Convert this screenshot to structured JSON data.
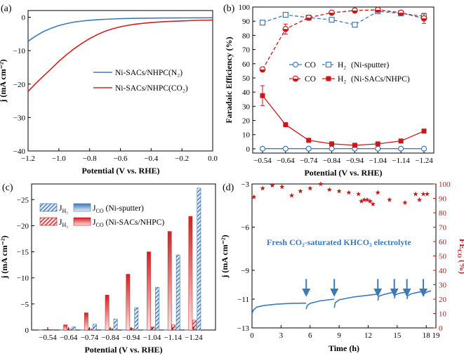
{
  "chart_data": [
    {
      "panel": "(a)",
      "type": "line",
      "xlabel": "Potential (V vs. RHE)",
      "ylabel": "j (mA cm⁻²)",
      "xlim": [
        -1.2,
        0.0
      ],
      "ylim": [
        -40,
        2
      ],
      "xticks": [
        -1.2,
        -1.0,
        -0.8,
        -0.6,
        -0.4,
        -0.2,
        0.0
      ],
      "yticks": [
        0,
        -10,
        -20,
        -30,
        -40
      ],
      "series": [
        {
          "name": "Ni-SACs/NHPC(N₂)",
          "color": "#3d7ab8",
          "x": [
            -1.2,
            -1.15,
            -1.1,
            -1.05,
            -1.0,
            -0.95,
            -0.9,
            -0.85,
            -0.8,
            -0.75,
            -0.7,
            -0.65,
            -0.6,
            -0.55,
            -0.5,
            -0.4,
            -0.3,
            -0.2,
            -0.1,
            0.0
          ],
          "y": [
            -7.2,
            -5.6,
            -4.3,
            -3.3,
            -2.5,
            -1.9,
            -1.45,
            -1.15,
            -0.92,
            -0.75,
            -0.62,
            -0.52,
            -0.44,
            -0.38,
            -0.33,
            -0.27,
            -0.23,
            -0.2,
            -0.18,
            -0.17
          ]
        },
        {
          "name": "Ni-SACs/NHPC(CO₂)",
          "color": "#d42020",
          "x": [
            -1.2,
            -1.15,
            -1.1,
            -1.05,
            -1.0,
            -0.95,
            -0.9,
            -0.85,
            -0.8,
            -0.75,
            -0.7,
            -0.65,
            -0.6,
            -0.55,
            -0.5,
            -0.4,
            -0.3,
            -0.2,
            -0.1,
            0.0
          ],
          "y": [
            -22.2,
            -19.8,
            -17.6,
            -15.4,
            -13.2,
            -11.2,
            -9.4,
            -7.8,
            -6.4,
            -5.2,
            -4.2,
            -3.45,
            -2.85,
            -2.4,
            -2.05,
            -1.6,
            -1.3,
            -1.1,
            -0.95,
            -0.85
          ]
        }
      ]
    },
    {
      "panel": "(b)",
      "type": "line",
      "xlabel": "Potential (V vs. RHE)",
      "ylabel": "Faradaic Efficiency (%)",
      "categories": [
        "-0.54",
        "-0.64",
        "-0.74",
        "-0.84",
        "-0.94",
        "-1.04",
        "-1.14",
        "-1.24"
      ],
      "ylim": [
        -3,
        100
      ],
      "yticks": [
        0,
        10,
        20,
        30,
        40,
        50,
        60,
        70,
        80,
        90,
        100
      ],
      "series": [
        {
          "name": "CO",
          "group": "Ni-sputter",
          "color": "#3d7ab8",
          "style": "solid-open-circle",
          "values": [
            0.1,
            0.1,
            0.1,
            0.1,
            0.1,
            0.1,
            0.1,
            0.1
          ]
        },
        {
          "name": "H₂",
          "group": "Ni-sputter",
          "color": "#3d7ab8",
          "style": "dashed-open-square",
          "values": [
            89.0,
            94.5,
            92.5,
            91.0,
            87.5,
            97.0,
            95.5,
            93.5
          ],
          "errors": [
            1.2,
            0.8,
            0.8,
            0.8,
            0.8,
            0.8,
            0.8,
            0.8
          ]
        },
        {
          "name": "CO",
          "group": "Ni-SACs/NHPC",
          "color": "#c81818",
          "style": "dashed-half-circle",
          "values": [
            56.0,
            84.5,
            92.5,
            96.0,
            97.5,
            98.0,
            96.0,
            92.0
          ],
          "errors": [
            0.8,
            3.5,
            1.0,
            1.0,
            0.6,
            0.6,
            1.0,
            3.5
          ]
        },
        {
          "name": "H₂",
          "group": "Ni-SACs/NHPC",
          "color": "#c81818",
          "style": "solid-filled-square",
          "values": [
            37.5,
            17.0,
            6.0,
            3.5,
            2.5,
            3.5,
            5.5,
            12.5
          ],
          "errors": [
            7.0,
            0.8,
            0.4,
            0.3,
            0.3,
            0.4,
            0.5,
            0.6
          ]
        }
      ],
      "legend": {
        "row1": {
          "co": "CO",
          "h2": "H₂",
          "group": "(Ni-sputter)"
        },
        "row2": {
          "co": "CO",
          "h2": "H₂",
          "group": "(Ni-SACs/NHPC)"
        }
      }
    },
    {
      "panel": "(c)",
      "type": "bar",
      "xlabel": "Potential (V vs. RHE)",
      "ylabel": "j (mA cm⁻²)",
      "categories": [
        "-0.54",
        "-0.64",
        "-0.74",
        "-0.84",
        "-0.94",
        "-1.04",
        "-1.14",
        "-1.24"
      ],
      "ylim": [
        0,
        -28
      ],
      "yticks": [
        0,
        -5,
        -10,
        -15,
        -20,
        -25
      ],
      "series": [
        {
          "name": "J_H2 (Ni-sputter)",
          "color": "#3d7ab8",
          "pattern": "hatched",
          "values": [
            -0.1,
            -0.6,
            -1.1,
            -2.1,
            -4.3,
            -8.2,
            -14.4,
            -27.2
          ]
        },
        {
          "name": "J_CO (Ni-sputter)",
          "color": "#3d7ab8",
          "pattern": "gradient",
          "values": [
            -0.05,
            -0.05,
            -0.05,
            -0.05,
            -0.05,
            -0.05,
            -0.05,
            -0.05
          ]
        },
        {
          "name": "J_H2 (Ni-SACs/NHPC)",
          "color": "#c81818",
          "pattern": "hatched",
          "values": [
            -0.1,
            -0.2,
            -0.25,
            -0.25,
            -0.3,
            -0.6,
            -1.0,
            -1.9
          ]
        },
        {
          "name": "J_CO (Ni-SACs/NHPC)",
          "color": "#c81818",
          "pattern": "gradient",
          "values": [
            -0.1,
            -1.0,
            -3.3,
            -6.7,
            -10.7,
            -15.0,
            -18.9,
            -21.8
          ]
        }
      ],
      "legend": {
        "r1_hatch": "J",
        "r1_hatch_sub": "H₂",
        "r1_grad": "J",
        "r1_grad_sub": "CO",
        "r1_group": " (Ni-sputter)",
        "r2_hatch": "J",
        "r2_hatch_sub": "H₂",
        "r2_grad": "J",
        "r2_grad_sub": "CO",
        "r2_group": " (Ni-SACs/NHPC)"
      }
    },
    {
      "panel": "(d)",
      "type": "scatter",
      "xlabel": "Time (h)",
      "ylabel_left": "j (mA cm⁻²)",
      "ylabel_right": "FE",
      "ylabel_right_sub": "CO",
      "ylabel_right_unit": " (%)",
      "xlim": [
        0,
        19
      ],
      "ylim_left": [
        -13,
        -3
      ],
      "ylim_right": [
        0,
        100
      ],
      "xticks": [
        0,
        3,
        6,
        9,
        12,
        15,
        18,
        19
      ],
      "yticks_left": [
        -3,
        -6,
        -9,
        -11,
        -13
      ],
      "yticks_right": [
        0,
        10,
        20,
        30,
        40,
        50,
        60,
        70,
        80,
        90,
        100
      ],
      "annotation": "Fresh CO₂-saturated KHCO₃ electrolyte",
      "arrows_h": [
        5.6,
        8.5,
        13.0,
        14.7,
        16.0,
        17.7
      ],
      "current_segments": [
        {
          "t0": 0.0,
          "t1": 5.6,
          "j": [
            [
              0,
              -12.0
            ],
            [
              0.15,
              -11.75
            ],
            [
              0.5,
              -11.55
            ],
            [
              1.2,
              -11.45
            ],
            [
              2.5,
              -11.35
            ],
            [
              4.0,
              -11.3
            ],
            [
              5.6,
              -11.28
            ]
          ]
        },
        {
          "t0": 5.6,
          "t1": 8.5,
          "j": [
            [
              5.6,
              -11.7
            ],
            [
              5.7,
              -11.45
            ],
            [
              6.0,
              -11.3
            ],
            [
              7.0,
              -11.12
            ],
            [
              8.5,
              -11.0
            ]
          ]
        },
        {
          "t0": 8.5,
          "t1": 13.0,
          "j": [
            [
              8.5,
              -11.6
            ],
            [
              8.6,
              -11.25
            ],
            [
              9.0,
              -11.05
            ],
            [
              10.5,
              -10.85
            ],
            [
              13.0,
              -10.65
            ]
          ]
        },
        {
          "t0": 13.0,
          "t1": 14.7,
          "j": [
            [
              13.0,
              -11.1
            ],
            [
              13.1,
              -10.8
            ],
            [
              13.5,
              -10.7
            ],
            [
              14.7,
              -10.5
            ]
          ]
        },
        {
          "t0": 14.7,
          "t1": 16.0,
          "j": [
            [
              14.7,
              -10.95
            ],
            [
              14.8,
              -10.7
            ],
            [
              15.2,
              -10.6
            ],
            [
              16.0,
              -10.5
            ]
          ]
        },
        {
          "t0": 16.0,
          "t1": 17.7,
          "j": [
            [
              16.0,
              -11.0
            ],
            [
              16.1,
              -10.75
            ],
            [
              16.5,
              -10.62
            ],
            [
              17.7,
              -10.45
            ]
          ]
        },
        {
          "t0": 17.7,
          "t1": 18.5,
          "j": [
            [
              17.7,
              -10.8
            ],
            [
              17.8,
              -10.6
            ],
            [
              18.2,
              -10.48
            ],
            [
              18.5,
              -10.42
            ]
          ]
        }
      ],
      "fe_points": {
        "t": [
          0.2,
          1.1,
          2.1,
          3.1,
          4.1,
          5.0,
          6.0,
          7.1,
          8.0,
          9.0,
          10.0,
          11.0,
          11.3,
          11.6,
          11.9,
          12.2,
          12.5,
          13.0,
          14.2,
          15.8,
          16.9,
          17.3,
          17.7,
          18.1
        ],
        "fe": [
          91,
          97,
          99,
          98,
          92,
          95,
          97,
          100,
          96,
          95,
          94,
          93,
          88,
          89,
          89,
          88,
          86,
          94,
          89,
          87,
          93,
          89,
          93,
          93
        ]
      }
    }
  ]
}
